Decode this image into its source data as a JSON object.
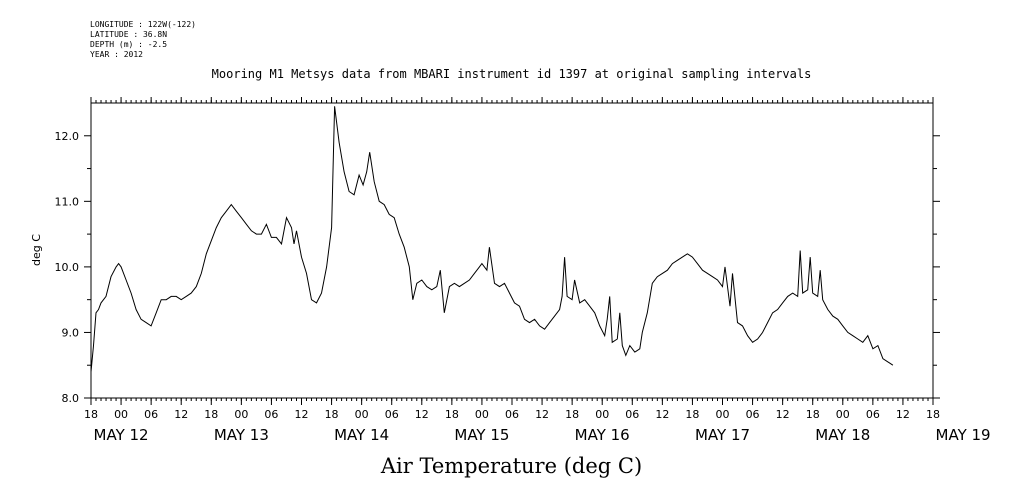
{
  "header": {
    "longitude": "LONGITUDE : 122W(-122)",
    "latitude": "LATITUDE : 36.8N",
    "depth": "DEPTH (m) : -2.5",
    "year": "YEAR : 2012"
  },
  "chart_data": {
    "type": "line",
    "title": "Mooring M1 Metsys data from MBARI instrument id 1397 at original sampling intervals",
    "xlabel": "Air Temperature (deg C)",
    "ylabel": "deg C",
    "xlim": [
      0,
      168
    ],
    "ylim": [
      8.0,
      12.5
    ],
    "yticks": [
      8.0,
      9.0,
      10.0,
      11.0,
      12.0
    ],
    "ytick_labels": [
      "8.0",
      "9.0",
      "10.0",
      "11.0",
      "12.0"
    ],
    "xtick_labels": [
      "18",
      "00",
      "06",
      "12",
      "18",
      "00",
      "06",
      "12",
      "18",
      "00",
      "06",
      "12",
      "18",
      "00",
      "06",
      "12",
      "18",
      "00",
      "06",
      "12",
      "18",
      "00",
      "06",
      "12",
      "18",
      "00",
      "06",
      "12",
      "18"
    ],
    "date_labels": [
      {
        "text": "MAY 12",
        "x": 6
      },
      {
        "text": "MAY 13",
        "x": 30
      },
      {
        "text": "MAY 14",
        "x": 54
      },
      {
        "text": "MAY 15",
        "x": 78
      },
      {
        "text": "MAY 16",
        "x": 102
      },
      {
        "text": "MAY 17",
        "x": 126
      },
      {
        "text": "MAY 18",
        "x": 150
      },
      {
        "text": "MAY 19",
        "x": 174
      }
    ],
    "x_units": "hours since May 11 18:00",
    "series": [
      {
        "values": [
          [
            0,
            8.4
          ],
          [
            0.5,
            8.8
          ],
          [
            1,
            9.3
          ],
          [
            1.5,
            9.35
          ],
          [
            2,
            9.45
          ],
          [
            3,
            9.55
          ],
          [
            4,
            9.85
          ],
          [
            5,
            10.0
          ],
          [
            5.5,
            10.05
          ],
          [
            6,
            10.0
          ],
          [
            7,
            9.8
          ],
          [
            8,
            9.6
          ],
          [
            9,
            9.35
          ],
          [
            10,
            9.2
          ],
          [
            11,
            9.15
          ],
          [
            12,
            9.1
          ],
          [
            13,
            9.3
          ],
          [
            14,
            9.5
          ],
          [
            15,
            9.5
          ],
          [
            16,
            9.55
          ],
          [
            17,
            9.55
          ],
          [
            18,
            9.5
          ],
          [
            19,
            9.55
          ],
          [
            20,
            9.6
          ],
          [
            21,
            9.7
          ],
          [
            22,
            9.9
          ],
          [
            23,
            10.2
          ],
          [
            24,
            10.4
          ],
          [
            25,
            10.6
          ],
          [
            26,
            10.75
          ],
          [
            27,
            10.85
          ],
          [
            28,
            10.95
          ],
          [
            29,
            10.85
          ],
          [
            30,
            10.75
          ],
          [
            31,
            10.65
          ],
          [
            32,
            10.55
          ],
          [
            33,
            10.5
          ],
          [
            34,
            10.5
          ],
          [
            35,
            10.65
          ],
          [
            36,
            10.45
          ],
          [
            37,
            10.45
          ],
          [
            38,
            10.35
          ],
          [
            39,
            10.75
          ],
          [
            40,
            10.6
          ],
          [
            40.5,
            10.35
          ],
          [
            41,
            10.55
          ],
          [
            42,
            10.15
          ],
          [
            43,
            9.9
          ],
          [
            44,
            9.5
          ],
          [
            45,
            9.45
          ],
          [
            46,
            9.6
          ],
          [
            47,
            10.0
          ],
          [
            48,
            10.6
          ],
          [
            48.6,
            12.45
          ],
          [
            49.5,
            11.9
          ],
          [
            50.5,
            11.45
          ],
          [
            51.5,
            11.15
          ],
          [
            52.5,
            11.1
          ],
          [
            53.5,
            11.4
          ],
          [
            54.3,
            11.25
          ],
          [
            55,
            11.45
          ],
          [
            55.6,
            11.75
          ],
          [
            56.5,
            11.3
          ],
          [
            57.5,
            11.0
          ],
          [
            58.5,
            10.95
          ],
          [
            59.5,
            10.8
          ],
          [
            60.5,
            10.75
          ],
          [
            61.5,
            10.5
          ],
          [
            62.5,
            10.3
          ],
          [
            63.5,
            10.0
          ],
          [
            64.2,
            9.5
          ],
          [
            65,
            9.75
          ],
          [
            66,
            9.8
          ],
          [
            67,
            9.7
          ],
          [
            68,
            9.65
          ],
          [
            69,
            9.7
          ],
          [
            69.7,
            9.95
          ],
          [
            70.5,
            9.3
          ],
          [
            71.5,
            9.7
          ],
          [
            72.5,
            9.75
          ],
          [
            73.5,
            9.7
          ],
          [
            74.5,
            9.75
          ],
          [
            75.5,
            9.8
          ],
          [
            76.5,
            9.9
          ],
          [
            77.5,
            10.0
          ],
          [
            78,
            10.05
          ],
          [
            79,
            9.95
          ],
          [
            79.5,
            10.3
          ],
          [
            80.5,
            9.75
          ],
          [
            81.5,
            9.7
          ],
          [
            82.5,
            9.75
          ],
          [
            83.5,
            9.6
          ],
          [
            84.5,
            9.45
          ],
          [
            85.5,
            9.4
          ],
          [
            86.5,
            9.2
          ],
          [
            87.5,
            9.15
          ],
          [
            88.5,
            9.2
          ],
          [
            89.5,
            9.1
          ],
          [
            90.5,
            9.05
          ],
          [
            91.5,
            9.15
          ],
          [
            92.5,
            9.25
          ],
          [
            93.5,
            9.35
          ],
          [
            94,
            9.55
          ],
          [
            94.5,
            10.15
          ],
          [
            95,
            9.55
          ],
          [
            96,
            9.5
          ],
          [
            96.5,
            9.8
          ],
          [
            97.5,
            9.45
          ],
          [
            98.5,
            9.5
          ],
          [
            99.5,
            9.4
          ],
          [
            100.5,
            9.3
          ],
          [
            101.5,
            9.1
          ],
          [
            102.5,
            8.95
          ],
          [
            103,
            9.2
          ],
          [
            103.5,
            9.55
          ],
          [
            104,
            8.85
          ],
          [
            105,
            8.9
          ],
          [
            105.5,
            9.3
          ],
          [
            106,
            8.8
          ],
          [
            106.7,
            8.65
          ],
          [
            107.5,
            8.8
          ],
          [
            108.5,
            8.7
          ],
          [
            109.5,
            8.75
          ],
          [
            110,
            9.0
          ],
          [
            111,
            9.3
          ],
          [
            112,
            9.75
          ],
          [
            113,
            9.85
          ],
          [
            114,
            9.9
          ],
          [
            115,
            9.95
          ],
          [
            116,
            10.05
          ],
          [
            117,
            10.1
          ],
          [
            118,
            10.15
          ],
          [
            119,
            10.2
          ],
          [
            120,
            10.15
          ],
          [
            121,
            10.05
          ],
          [
            122,
            9.95
          ],
          [
            123,
            9.9
          ],
          [
            124,
            9.85
          ],
          [
            125,
            9.8
          ],
          [
            126,
            9.7
          ],
          [
            126.5,
            10.0
          ],
          [
            127.5,
            9.4
          ],
          [
            128,
            9.9
          ],
          [
            129,
            9.15
          ],
          [
            130,
            9.1
          ],
          [
            131,
            8.95
          ],
          [
            132,
            8.85
          ],
          [
            133,
            8.9
          ],
          [
            134,
            9.0
          ],
          [
            135,
            9.15
          ],
          [
            136,
            9.3
          ],
          [
            137,
            9.35
          ],
          [
            138,
            9.45
          ],
          [
            139,
            9.55
          ],
          [
            140,
            9.6
          ],
          [
            141,
            9.55
          ],
          [
            141.5,
            10.25
          ],
          [
            142,
            9.6
          ],
          [
            143,
            9.65
          ],
          [
            143.5,
            10.15
          ],
          [
            144,
            9.6
          ],
          [
            145,
            9.55
          ],
          [
            145.5,
            9.95
          ],
          [
            146,
            9.5
          ],
          [
            147,
            9.35
          ],
          [
            148,
            9.25
          ],
          [
            149,
            9.2
          ],
          [
            150,
            9.1
          ],
          [
            151,
            9.0
          ],
          [
            152,
            8.95
          ],
          [
            153,
            8.9
          ],
          [
            154,
            8.85
          ],
          [
            155,
            8.95
          ],
          [
            156,
            8.75
          ],
          [
            157,
            8.8
          ],
          [
            158,
            8.6
          ],
          [
            159,
            8.55
          ],
          [
            160,
            8.5
          ]
        ]
      }
    ]
  }
}
